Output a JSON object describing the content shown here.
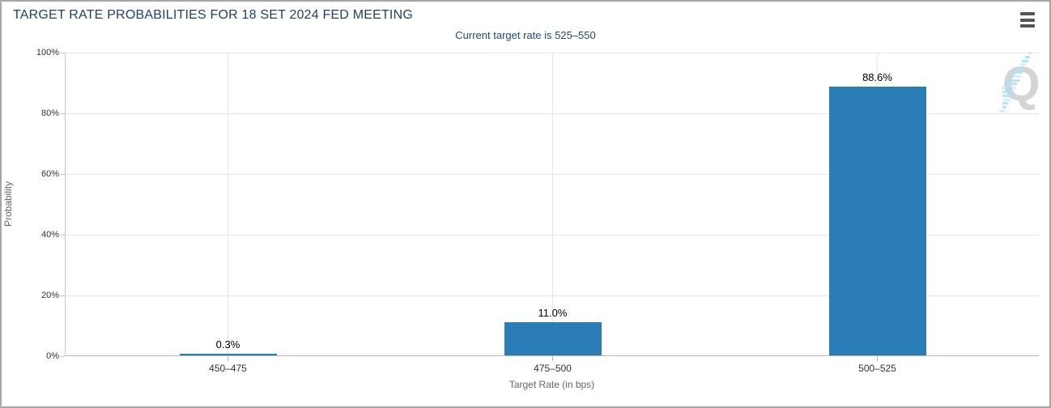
{
  "header": {
    "title": "TARGET RATE PROBABILITIES FOR 18 SET 2024 FED MEETING",
    "subtitle": "Current target rate is 525–550"
  },
  "menu": {
    "icon": "hamburger-icon"
  },
  "watermark": {
    "letter": "Q"
  },
  "colors": {
    "bar": "#2b7db5",
    "title": "#1e4164",
    "grid": "#e6e6e6",
    "axis_line": "#b3b3b3",
    "watermark_blue": "#aee0f7",
    "watermark_gray": "#d4d4d4"
  },
  "chart_data": {
    "type": "bar",
    "title": "TARGET RATE PROBABILITIES FOR 18 SET 2024 FED MEETING",
    "subtitle": "Current target rate is 525–550",
    "categories": [
      "450–475",
      "475–500",
      "500–525"
    ],
    "values": [
      0.3,
      11.0,
      88.6
    ],
    "data_labels": [
      "0.3%",
      "11.0%",
      "88.6%"
    ],
    "xlabel": "Target Rate (in bps)",
    "ylabel": "Probability",
    "ylim": [
      0,
      100
    ],
    "ytick_step": 20,
    "yticks": [
      "0%",
      "20%",
      "40%",
      "60%",
      "80%",
      "100%"
    ],
    "grid": true,
    "legend_position": "none",
    "bar_color": "#2b7db5"
  }
}
